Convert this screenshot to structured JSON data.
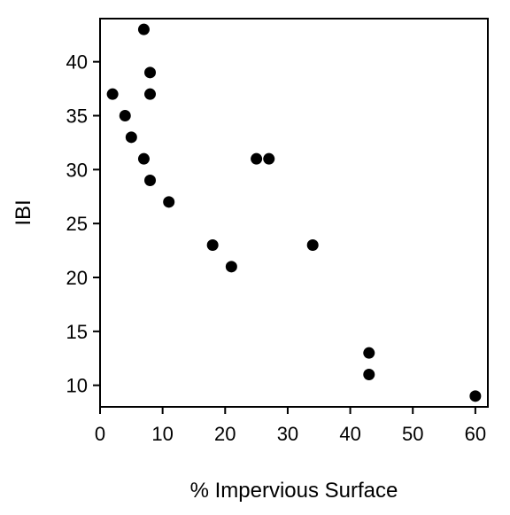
{
  "chart_data": {
    "type": "scatter",
    "title": "",
    "xlabel": "% Impervious Surface",
    "ylabel": "IBI",
    "xlim": [
      0,
      62
    ],
    "ylim": [
      8,
      44
    ],
    "xticks": [
      0,
      10,
      20,
      30,
      40,
      50,
      60
    ],
    "yticks": [
      10,
      15,
      20,
      25,
      30,
      35,
      40
    ],
    "grid": false,
    "legend": "none",
    "marker_color": "#000000",
    "series": [
      {
        "points": [
          {
            "x": 2,
            "y": 37
          },
          {
            "x": 4,
            "y": 35
          },
          {
            "x": 5,
            "y": 33
          },
          {
            "x": 7,
            "y": 43
          },
          {
            "x": 7,
            "y": 31
          },
          {
            "x": 8,
            "y": 39
          },
          {
            "x": 8,
            "y": 37
          },
          {
            "x": 8,
            "y": 29
          },
          {
            "x": 11,
            "y": 27
          },
          {
            "x": 18,
            "y": 23
          },
          {
            "x": 21,
            "y": 21
          },
          {
            "x": 25,
            "y": 31
          },
          {
            "x": 27,
            "y": 31
          },
          {
            "x": 34,
            "y": 23
          },
          {
            "x": 43,
            "y": 13
          },
          {
            "x": 43,
            "y": 11
          },
          {
            "x": 60,
            "y": 9
          }
        ]
      }
    ]
  }
}
